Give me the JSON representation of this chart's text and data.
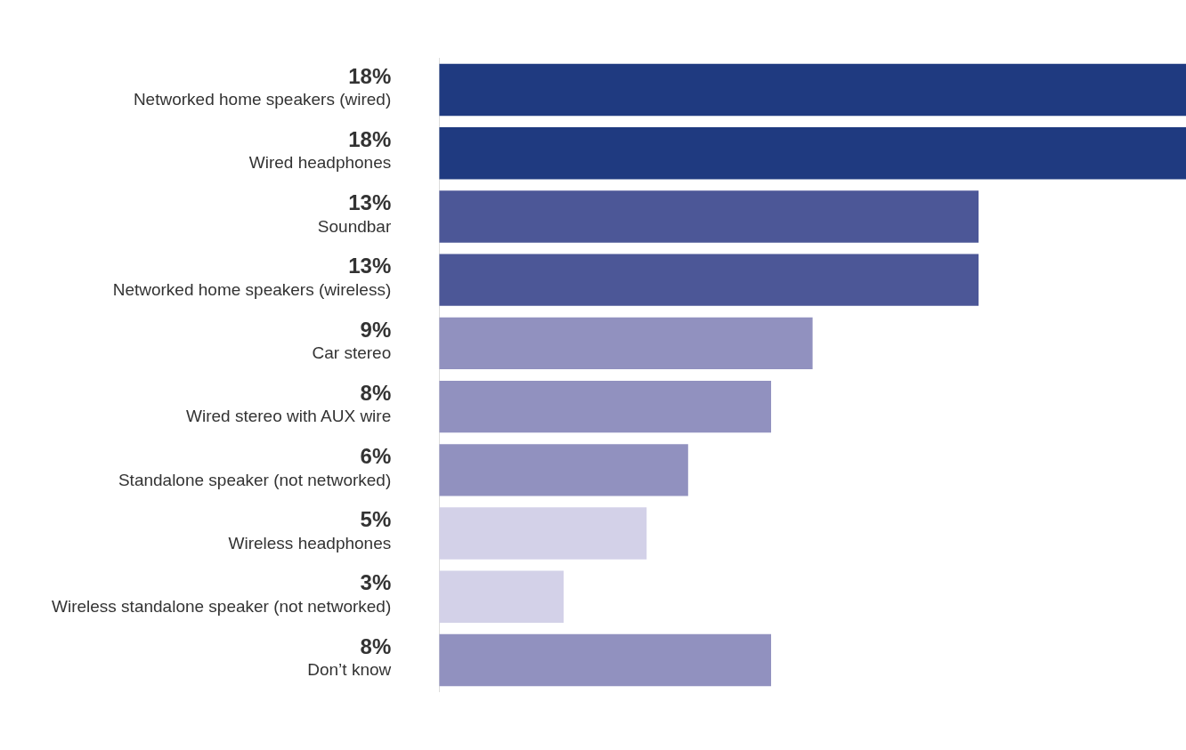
{
  "chart_data": {
    "type": "bar",
    "orientation": "horizontal",
    "categories": [
      "Networked home speakers (wired)",
      "Wired headphones",
      "Soundbar",
      "Networked home speakers (wireless)",
      "Car stereo",
      "Wired stereo with AUX wire",
      "Standalone speaker (not networked)",
      "Wireless headphones",
      "Wireless standalone speaker (not networked)",
      "Don’t know"
    ],
    "values": [
      18,
      18,
      13,
      13,
      9,
      8,
      6,
      5,
      3,
      8
    ],
    "value_labels": [
      "18%",
      "18%",
      "13%",
      "13%",
      "9%",
      "8%",
      "6%",
      "5%",
      "3%",
      "8%"
    ],
    "colors": [
      "#1f3a80",
      "#1f3a80",
      "#4c5797",
      "#4c5797",
      "#9191bf",
      "#9191bf",
      "#9191bf",
      "#d3d1e8",
      "#d3d1e8",
      "#9191bf"
    ],
    "xlim": [
      0,
      18
    ],
    "tick_labels": "y",
    "legend": false
  }
}
